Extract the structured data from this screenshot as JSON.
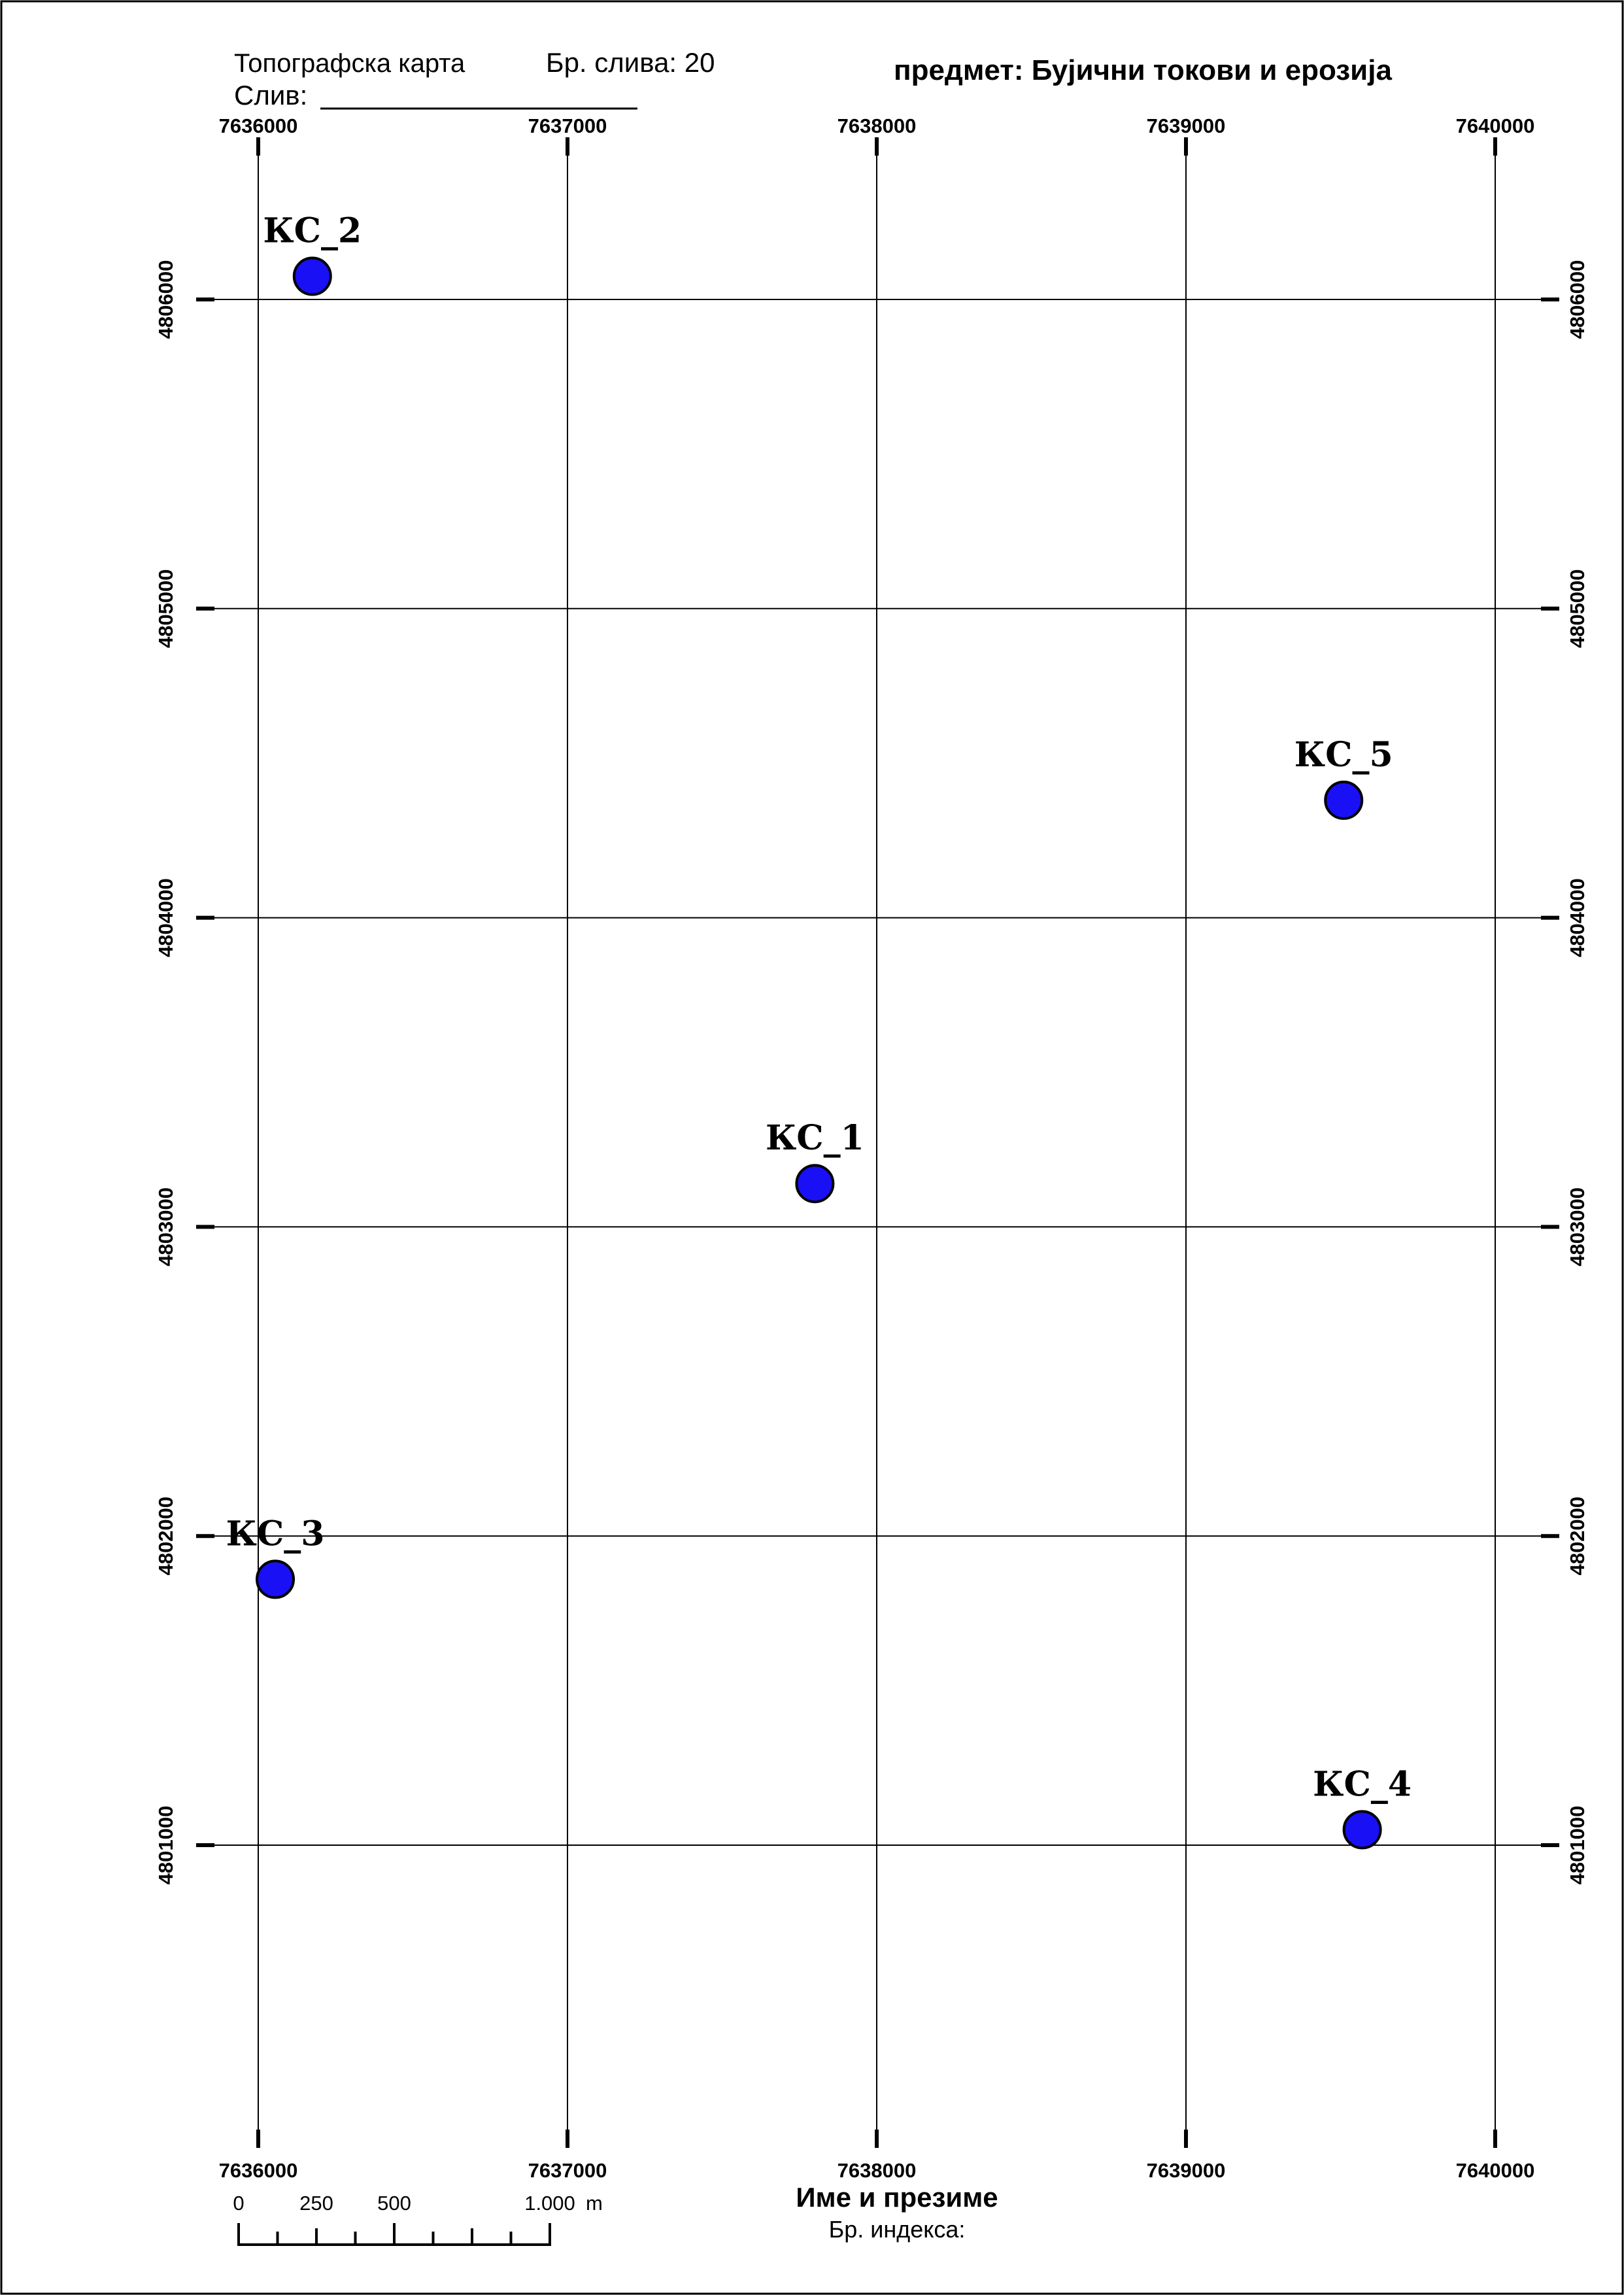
{
  "header": {
    "map_type": "Топографска карта",
    "catchment_no_label": "Бр. слива: 20",
    "catchment_label": "Слив:",
    "subject": "предмет: Бујични токови и ерозија"
  },
  "grid": {
    "eastings": [
      "7636000",
      "7637000",
      "7638000",
      "7639000",
      "7640000"
    ],
    "northings": [
      "4806000",
      "4805000",
      "4804000",
      "4803000",
      "4802000",
      "4801000"
    ]
  },
  "stations": [
    {
      "name": "КС_1",
      "easting": 7637800,
      "northing": 4803140
    },
    {
      "name": "КС_2",
      "easting": 7636175,
      "northing": 4806075
    },
    {
      "name": "КС_3",
      "easting": 7636055,
      "northing": 4801860
    },
    {
      "name": "КС_4",
      "easting": 7639570,
      "northing": 4801050
    },
    {
      "name": "КС_5",
      "easting": 7639510,
      "northing": 4804380
    }
  ],
  "scale_bar": {
    "labels": [
      "0",
      "250",
      "500",
      "1.000"
    ],
    "unit": "m"
  },
  "footer": {
    "name_label": "Име и презиме",
    "index_label": "Бр. индекса:"
  },
  "colors": {
    "station_fill": "#1a10f5",
    "station_stroke": "#000000",
    "grid_line": "#000000"
  }
}
